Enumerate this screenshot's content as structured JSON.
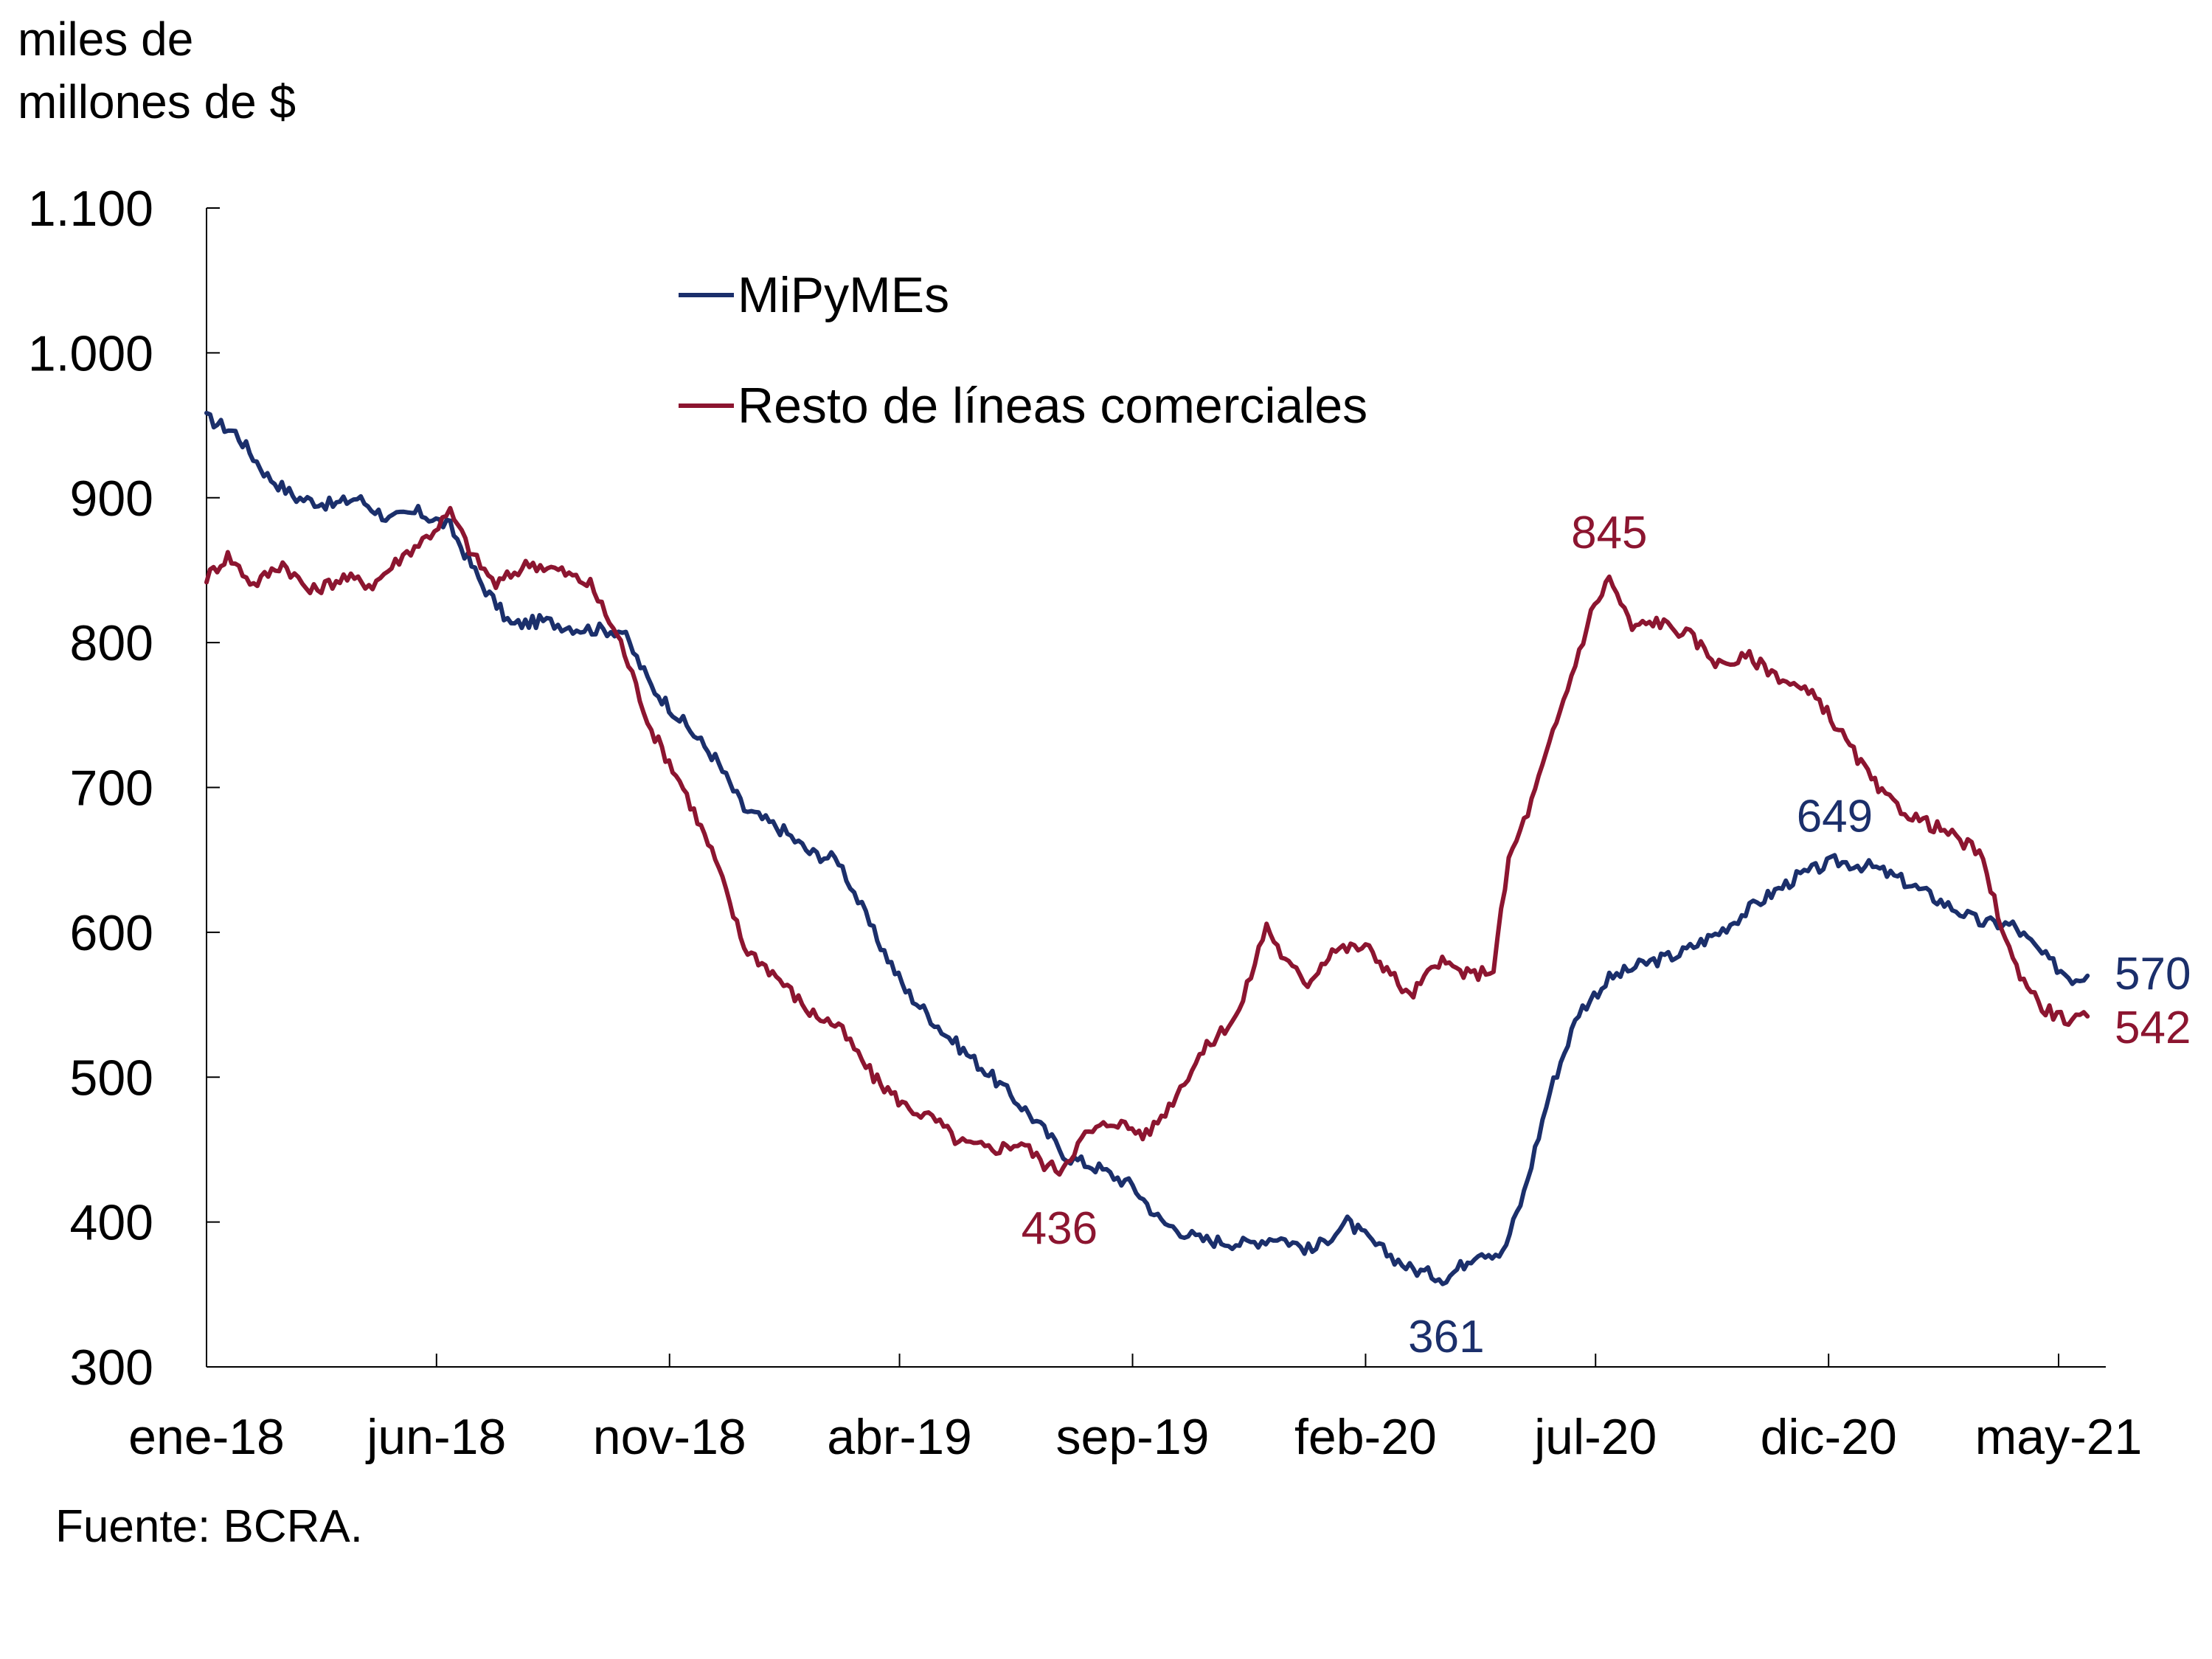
{
  "chart_data": {
    "type": "line",
    "ylabel_lines": [
      "miles de",
      "millones de $"
    ],
    "source": "Fuente: BCRA.",
    "ylim": [
      300,
      1100
    ],
    "yticks": [
      300,
      400,
      500,
      600,
      700,
      800,
      900,
      1000,
      1100
    ],
    "ytick_labels": [
      "300",
      "400",
      "500",
      "600",
      "700",
      "800",
      "900",
      "1.000",
      "1.100"
    ],
    "xlim": [
      "2018-01-01",
      "2021-06-01"
    ],
    "xticks": [
      "2018-01-01",
      "2018-06-01",
      "2018-11-01",
      "2019-04-01",
      "2019-09-01",
      "2020-02-01",
      "2020-07-01",
      "2020-12-01",
      "2021-05-01"
    ],
    "xtick_labels": [
      "ene-18",
      "jun-18",
      "nov-18",
      "abr-19",
      "sep-19",
      "feb-20",
      "jul-20",
      "dic-20",
      "may-21"
    ],
    "grid": false,
    "legend_position": "top-center",
    "series": [
      {
        "name": "MiPyMEs",
        "color": "#1b2f6b",
        "points": [
          [
            "2018-01-01",
            955
          ],
          [
            "2018-01-20",
            945
          ],
          [
            "2018-02-10",
            915
          ],
          [
            "2018-03-01",
            900
          ],
          [
            "2018-03-25",
            895
          ],
          [
            "2018-04-10",
            900
          ],
          [
            "2018-05-01",
            885
          ],
          [
            "2018-05-20",
            890
          ],
          [
            "2018-06-10",
            880
          ],
          [
            "2018-07-01",
            840
          ],
          [
            "2018-07-20",
            812
          ],
          [
            "2018-08-10",
            815
          ],
          [
            "2018-09-01",
            810
          ],
          [
            "2018-10-01",
            808
          ],
          [
            "2018-10-20",
            770
          ],
          [
            "2018-11-10",
            745
          ],
          [
            "2018-12-01",
            720
          ],
          [
            "2018-12-20",
            685
          ],
          [
            "2019-01-15",
            670
          ],
          [
            "2019-02-01",
            655
          ],
          [
            "2019-02-20",
            650
          ],
          [
            "2019-03-15",
            600
          ],
          [
            "2019-04-05",
            560
          ],
          [
            "2019-05-01",
            530
          ],
          [
            "2019-06-01",
            500
          ],
          [
            "2019-06-25",
            475
          ],
          [
            "2019-07-20",
            445
          ],
          [
            "2019-08-10",
            437
          ],
          [
            "2019-09-01",
            425
          ],
          [
            "2019-09-20",
            400
          ],
          [
            "2019-10-15",
            388
          ],
          [
            "2019-11-15",
            385
          ],
          [
            "2019-12-05",
            390
          ],
          [
            "2019-12-28",
            380
          ],
          [
            "2020-01-20",
            400
          ],
          [
            "2020-02-10",
            382
          ],
          [
            "2020-03-01",
            368
          ],
          [
            "2020-03-25",
            361
          ],
          [
            "2020-04-15",
            380
          ],
          [
            "2020-05-01",
            378
          ],
          [
            "2020-05-15",
            420
          ],
          [
            "2020-06-01",
            490
          ],
          [
            "2020-06-20",
            545
          ],
          [
            "2020-07-10",
            568
          ],
          [
            "2020-08-01",
            578
          ],
          [
            "2020-08-25",
            585
          ],
          [
            "2020-09-20",
            600
          ],
          [
            "2020-10-15",
            620
          ],
          [
            "2020-11-10",
            638
          ],
          [
            "2020-12-05",
            649
          ],
          [
            "2020-12-30",
            645
          ],
          [
            "2021-01-20",
            635
          ],
          [
            "2021-02-15",
            620
          ],
          [
            "2021-03-10",
            607
          ],
          [
            "2021-04-01",
            605
          ],
          [
            "2021-04-25",
            580
          ],
          [
            "2021-05-10",
            568
          ],
          [
            "2021-05-20",
            570
          ]
        ]
      },
      {
        "name": "Resto de líneas comerciales",
        "color": "#8c1530",
        "points": [
          [
            "2018-01-01",
            845
          ],
          [
            "2018-01-15",
            860
          ],
          [
            "2018-02-01",
            840
          ],
          [
            "2018-02-20",
            855
          ],
          [
            "2018-03-10",
            835
          ],
          [
            "2018-04-01",
            845
          ],
          [
            "2018-04-20",
            840
          ],
          [
            "2018-05-10",
            860
          ],
          [
            "2018-05-28",
            875
          ],
          [
            "2018-06-10",
            890
          ],
          [
            "2018-06-25",
            860
          ],
          [
            "2018-07-10",
            840
          ],
          [
            "2018-08-01",
            855
          ],
          [
            "2018-08-20",
            850
          ],
          [
            "2018-09-10",
            840
          ],
          [
            "2018-09-30",
            800
          ],
          [
            "2018-10-20",
            740
          ],
          [
            "2018-11-10",
            700
          ],
          [
            "2018-12-01",
            650
          ],
          [
            "2018-12-20",
            590
          ],
          [
            "2019-01-10",
            570
          ],
          [
            "2019-02-01",
            545
          ],
          [
            "2019-02-20",
            535
          ],
          [
            "2019-03-15",
            500
          ],
          [
            "2019-04-05",
            480
          ],
          [
            "2019-04-25",
            470
          ],
          [
            "2019-05-10",
            455
          ],
          [
            "2019-06-01",
            450
          ],
          [
            "2019-06-20",
            455
          ],
          [
            "2019-07-05",
            440
          ],
          [
            "2019-07-15",
            436
          ],
          [
            "2019-08-01",
            460
          ],
          [
            "2019-08-20",
            470
          ],
          [
            "2019-09-10",
            460
          ],
          [
            "2019-09-25",
            480
          ],
          [
            "2019-10-15",
            515
          ],
          [
            "2019-11-10",
            545
          ],
          [
            "2019-11-28",
            605
          ],
          [
            "2019-12-10",
            580
          ],
          [
            "2019-12-25",
            565
          ],
          [
            "2020-01-10",
            588
          ],
          [
            "2020-02-01",
            590
          ],
          [
            "2020-02-15",
            575
          ],
          [
            "2020-03-01",
            555
          ],
          [
            "2020-03-20",
            580
          ],
          [
            "2020-04-10",
            570
          ],
          [
            "2020-04-25",
            575
          ],
          [
            "2020-05-05",
            650
          ],
          [
            "2020-05-20",
            690
          ],
          [
            "2020-06-10",
            760
          ],
          [
            "2020-06-28",
            820
          ],
          [
            "2020-07-10",
            845
          ],
          [
            "2020-07-25",
            810
          ],
          [
            "2020-08-10",
            815
          ],
          [
            "2020-09-01",
            805
          ],
          [
            "2020-09-20",
            785
          ],
          [
            "2020-10-10",
            790
          ],
          [
            "2020-11-01",
            775
          ],
          [
            "2020-11-25",
            760
          ],
          [
            "2020-12-20",
            720
          ],
          [
            "2021-01-05",
            695
          ],
          [
            "2021-01-25",
            680
          ],
          [
            "2021-02-15",
            670
          ],
          [
            "2021-03-10",
            655
          ],
          [
            "2021-04-01",
            580
          ],
          [
            "2021-04-20",
            548
          ],
          [
            "2021-05-10",
            538
          ],
          [
            "2021-05-20",
            542
          ]
        ]
      }
    ],
    "annotations": [
      {
        "text": "436",
        "series": 1,
        "date": "2019-07-15",
        "value": 436,
        "position": "below"
      },
      {
        "text": "361",
        "series": 0,
        "date": "2020-03-25",
        "value": 361,
        "position": "below"
      },
      {
        "text": "845",
        "series": 1,
        "date": "2020-07-10",
        "value": 845,
        "position": "above"
      },
      {
        "text": "649",
        "series": 0,
        "date": "2020-12-05",
        "value": 649,
        "position": "above"
      },
      {
        "text": "570",
        "series": 0,
        "date": "2021-05-20",
        "value": 570,
        "position": "right"
      },
      {
        "text": "542",
        "series": 1,
        "date": "2021-05-20",
        "value": 542,
        "position": "right"
      }
    ]
  }
}
